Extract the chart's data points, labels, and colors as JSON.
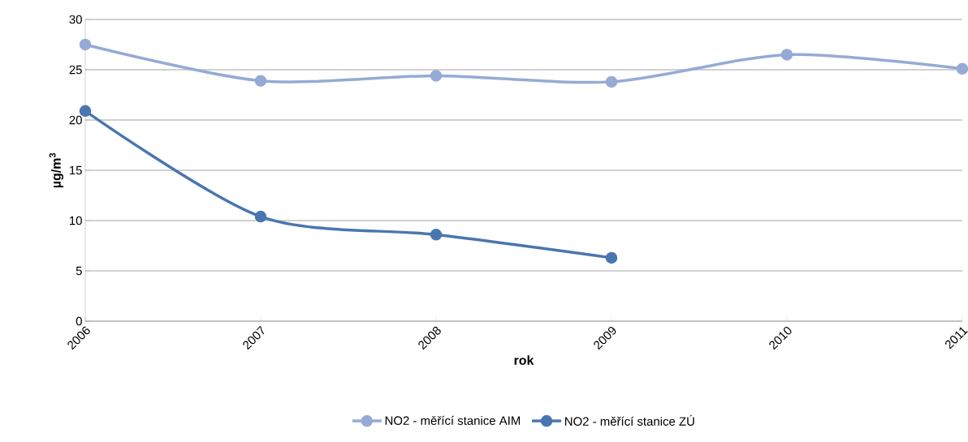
{
  "chart_data": {
    "type": "line",
    "xlabel": "rok",
    "ylabel": "µg/m$^{3}$",
    "x": [
      2006,
      2007,
      2008,
      2009,
      2010,
      2011
    ],
    "series": [
      {
        "name": "NO2 - měřící stanice AIM",
        "color": "#95abd5",
        "values": [
          27.5,
          23.9,
          24.4,
          23.8,
          26.5,
          25.1
        ]
      },
      {
        "name": "NO2 - měřící stanice ZÚ",
        "color": "#4a76b0",
        "values": [
          20.9,
          10.4,
          8.6,
          6.3,
          null,
          null
        ]
      }
    ],
    "xlim": [
      2006,
      2011
    ],
    "xticks": [
      2006,
      2007,
      2008,
      2009,
      2010,
      2011
    ],
    "ylim": [
      0,
      30
    ],
    "yticks": [
      0,
      5,
      10,
      15,
      20,
      25,
      30
    ],
    "grid": "y",
    "legend": "bottom",
    "marker": "circle",
    "line_style": "solid"
  }
}
